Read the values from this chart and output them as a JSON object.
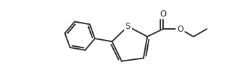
{
  "bg_color": "#ffffff",
  "line_color": "#2a2a2a",
  "line_width": 1.4,
  "figsize": [
    3.3,
    1.22
  ],
  "dpi": 100,
  "font_size_S": 8.5,
  "font_size_O": 8.5,
  "S_label": "S",
  "O_label": "O",
  "xlim": [
    0,
    330
  ],
  "ylim": [
    0,
    122
  ]
}
